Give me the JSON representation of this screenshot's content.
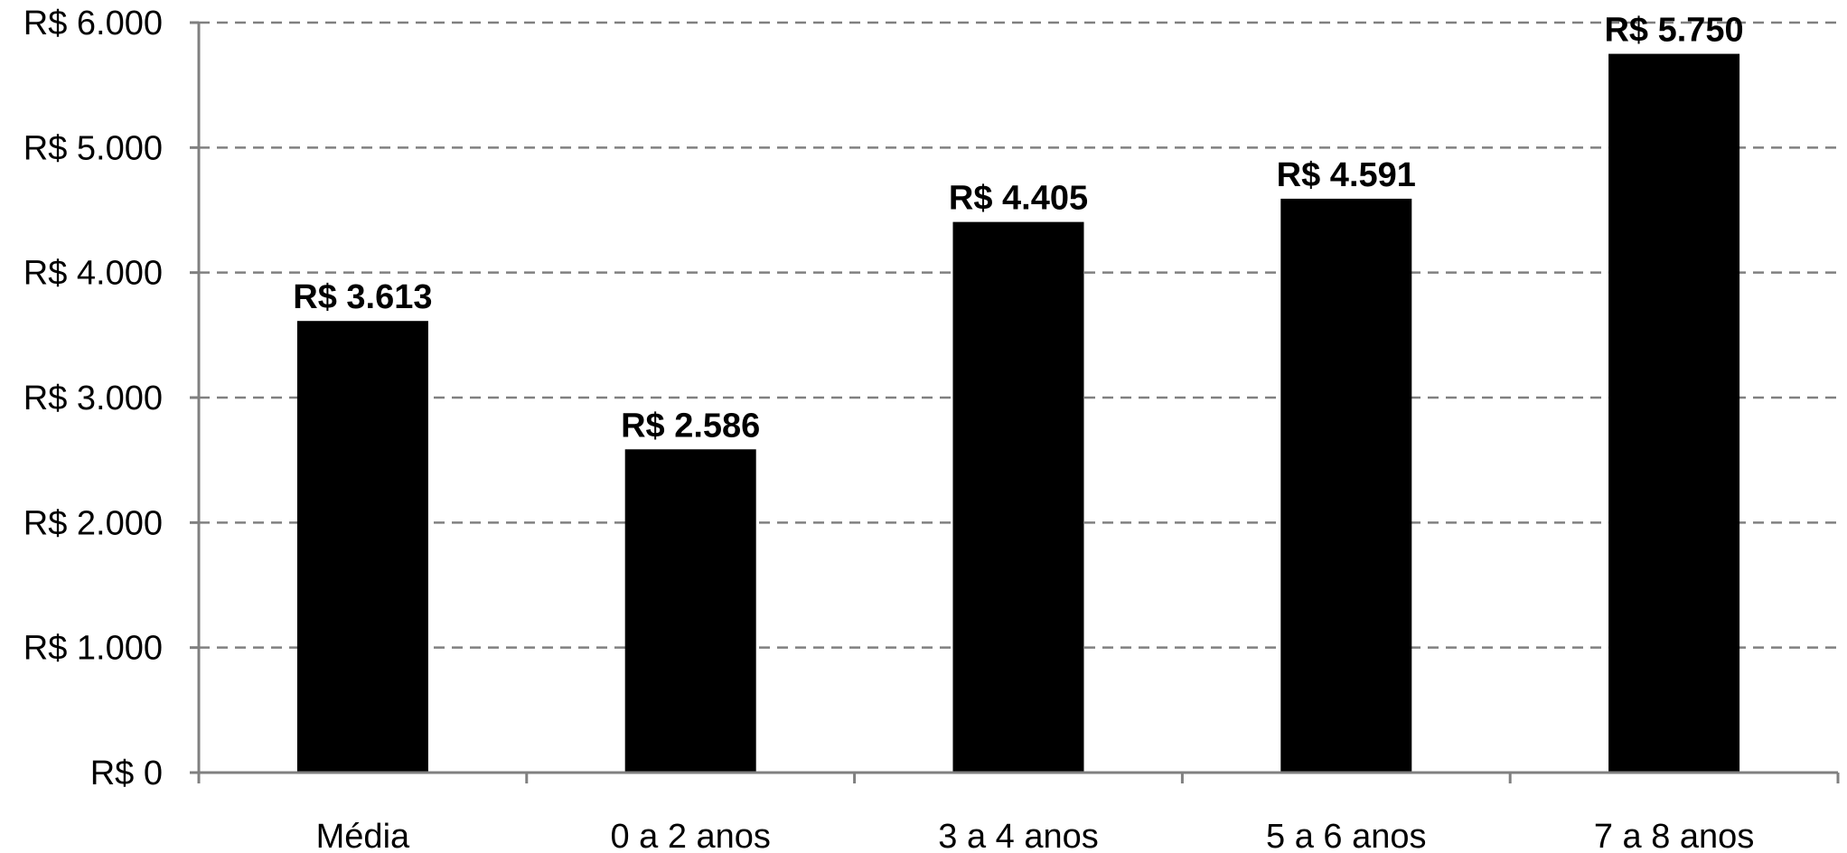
{
  "chart_data": {
    "type": "bar",
    "categories": [
      "Média",
      "0 a 2 anos",
      "3 a 4 anos",
      "5 a 6 anos",
      "7 a 8 anos"
    ],
    "values": [
      3613,
      2586,
      4405,
      4591,
      5750
    ],
    "value_labels": [
      "R$ 3.613",
      "R$ 2.586",
      "R$ 4.405",
      "R$ 4.591",
      "R$ 5.750"
    ],
    "y_ticks": [
      0,
      1000,
      2000,
      3000,
      4000,
      5000,
      6000
    ],
    "y_tick_labels": [
      "R$ 0",
      "R$ 1.000",
      "R$ 2.000",
      "R$ 3.000",
      "R$ 4.000",
      "R$ 5.000",
      "R$ 6.000"
    ],
    "ylim": [
      0,
      6000
    ],
    "title": "",
    "xlabel": "",
    "ylabel": "",
    "grid": "horizontal-dashed",
    "legend": "none",
    "colors": {
      "bar": "#000000",
      "grid": "#808080",
      "axis": "#808080"
    }
  }
}
